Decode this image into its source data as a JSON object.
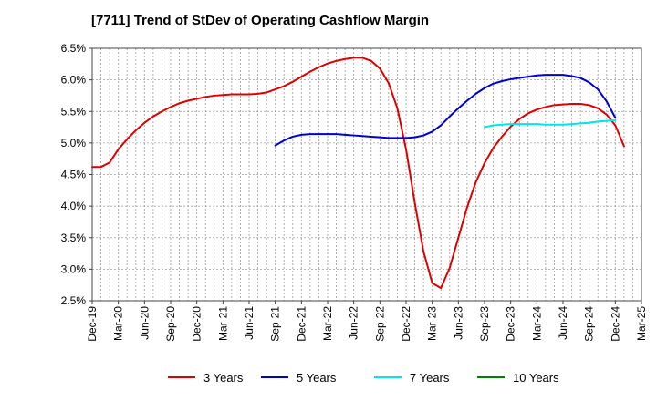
{
  "chart_data": {
    "type": "line",
    "title": "[7711]  Trend of StDev of Operating Cashflow Margin",
    "xlabel": "",
    "ylabel": "",
    "x_ticks": [
      "Dec-19",
      "Mar-20",
      "Jun-20",
      "Sep-20",
      "Dec-20",
      "Mar-21",
      "Jun-21",
      "Sep-21",
      "Dec-21",
      "Mar-22",
      "Jun-22",
      "Sep-22",
      "Dec-22",
      "Mar-23",
      "Jun-23",
      "Sep-23",
      "Dec-23",
      "Mar-24",
      "Jun-24",
      "Sep-24",
      "Dec-24",
      "Mar-25"
    ],
    "y_ticks": [
      "2.5%",
      "3.0%",
      "3.5%",
      "4.0%",
      "4.5%",
      "5.0%",
      "5.5%",
      "6.0%",
      "6.5%"
    ],
    "ylim": [
      2.5,
      6.5
    ],
    "xlim": [
      "Dec-19",
      "Mar-25"
    ],
    "grid": true,
    "legend_position": "bottom",
    "series": [
      {
        "name": "3 Years",
        "color": "#dd0000",
        "points": [
          [
            "Dec-19",
            4.62
          ],
          [
            "Jan-20",
            4.62
          ],
          [
            "Feb-20",
            4.69
          ],
          [
            "Mar-20",
            4.9
          ],
          [
            "Apr-20",
            5.06
          ],
          [
            "May-20",
            5.2
          ],
          [
            "Jun-20",
            5.32
          ],
          [
            "Jul-20",
            5.42
          ],
          [
            "Aug-20",
            5.5
          ],
          [
            "Sep-20",
            5.57
          ],
          [
            "Oct-20",
            5.63
          ],
          [
            "Nov-20",
            5.67
          ],
          [
            "Dec-20",
            5.7
          ],
          [
            "Jan-21",
            5.73
          ],
          [
            "Feb-21",
            5.75
          ],
          [
            "Mar-21",
            5.76
          ],
          [
            "Apr-21",
            5.77
          ],
          [
            "May-21",
            5.77
          ],
          [
            "Jun-21",
            5.77
          ],
          [
            "Jul-21",
            5.78
          ],
          [
            "Aug-21",
            5.8
          ],
          [
            "Sep-21",
            5.85
          ],
          [
            "Oct-21",
            5.9
          ],
          [
            "Nov-21",
            5.97
          ],
          [
            "Dec-21",
            6.05
          ],
          [
            "Jan-22",
            6.13
          ],
          [
            "Feb-22",
            6.2
          ],
          [
            "Mar-22",
            6.26
          ],
          [
            "Apr-22",
            6.3
          ],
          [
            "May-22",
            6.33
          ],
          [
            "Jun-22",
            6.35
          ],
          [
            "Jul-22",
            6.35
          ],
          [
            "Aug-22",
            6.3
          ],
          [
            "Sep-22",
            6.18
          ],
          [
            "Oct-22",
            5.95
          ],
          [
            "Nov-22",
            5.55
          ],
          [
            "Dec-22",
            4.9
          ],
          [
            "Jan-23",
            4.05
          ],
          [
            "Feb-23",
            3.28
          ],
          [
            "Mar-23",
            2.78
          ],
          [
            "Apr-23",
            2.7
          ],
          [
            "May-23",
            3.02
          ],
          [
            "Jun-23",
            3.5
          ],
          [
            "Jul-23",
            3.98
          ],
          [
            "Aug-23",
            4.38
          ],
          [
            "Sep-23",
            4.68
          ],
          [
            "Oct-23",
            4.92
          ],
          [
            "Nov-23",
            5.1
          ],
          [
            "Dec-23",
            5.26
          ],
          [
            "Jan-24",
            5.38
          ],
          [
            "Feb-24",
            5.47
          ],
          [
            "Mar-24",
            5.53
          ],
          [
            "Apr-24",
            5.57
          ],
          [
            "May-24",
            5.6
          ],
          [
            "Jun-24",
            5.61
          ],
          [
            "Jul-24",
            5.62
          ],
          [
            "Aug-24",
            5.62
          ],
          [
            "Sep-24",
            5.6
          ],
          [
            "Oct-24",
            5.55
          ],
          [
            "Nov-24",
            5.45
          ],
          [
            "Dec-24",
            5.28
          ],
          [
            "Jan-25",
            4.95
          ]
        ]
      },
      {
        "name": "5 Years",
        "color": "#0000cc",
        "points": [
          [
            "Sep-21",
            4.96
          ],
          [
            "Oct-21",
            5.04
          ],
          [
            "Nov-21",
            5.1
          ],
          [
            "Dec-21",
            5.13
          ],
          [
            "Jan-22",
            5.14
          ],
          [
            "Feb-22",
            5.14
          ],
          [
            "Mar-22",
            5.14
          ],
          [
            "Apr-22",
            5.14
          ],
          [
            "May-22",
            5.13
          ],
          [
            "Jun-22",
            5.12
          ],
          [
            "Jul-22",
            5.11
          ],
          [
            "Aug-22",
            5.1
          ],
          [
            "Sep-22",
            5.09
          ],
          [
            "Oct-22",
            5.08
          ],
          [
            "Nov-22",
            5.08
          ],
          [
            "Dec-22",
            5.08
          ],
          [
            "Jan-23",
            5.09
          ],
          [
            "Feb-23",
            5.12
          ],
          [
            "Mar-23",
            5.18
          ],
          [
            "Apr-23",
            5.28
          ],
          [
            "May-23",
            5.42
          ],
          [
            "Jun-23",
            5.55
          ],
          [
            "Jul-23",
            5.67
          ],
          [
            "Aug-23",
            5.78
          ],
          [
            "Sep-23",
            5.87
          ],
          [
            "Oct-23",
            5.94
          ],
          [
            "Nov-23",
            5.98
          ],
          [
            "Dec-23",
            6.01
          ],
          [
            "Jan-24",
            6.03
          ],
          [
            "Feb-24",
            6.05
          ],
          [
            "Mar-24",
            6.07
          ],
          [
            "Apr-24",
            6.08
          ],
          [
            "May-24",
            6.08
          ],
          [
            "Jun-24",
            6.08
          ],
          [
            "Jul-24",
            6.06
          ],
          [
            "Aug-24",
            6.03
          ],
          [
            "Sep-24",
            5.96
          ],
          [
            "Oct-24",
            5.85
          ],
          [
            "Nov-24",
            5.66
          ],
          [
            "Dec-24",
            5.4
          ]
        ]
      },
      {
        "name": "7 Years",
        "color": "#00e5e5",
        "points": [
          [
            "Sep-23",
            5.25
          ],
          [
            "Oct-23",
            5.28
          ],
          [
            "Nov-23",
            5.29
          ],
          [
            "Dec-23",
            5.3
          ],
          [
            "Jan-24",
            5.3
          ],
          [
            "Feb-24",
            5.3
          ],
          [
            "Mar-24",
            5.3
          ],
          [
            "Apr-24",
            5.29
          ],
          [
            "May-24",
            5.29
          ],
          [
            "Jun-24",
            5.29
          ],
          [
            "Jul-24",
            5.3
          ],
          [
            "Aug-24",
            5.31
          ],
          [
            "Sep-24",
            5.32
          ],
          [
            "Oct-24",
            5.34
          ],
          [
            "Nov-24",
            5.35
          ],
          [
            "Dec-24",
            5.36
          ]
        ]
      },
      {
        "name": "10 Years",
        "color": "#008000",
        "points": []
      }
    ]
  }
}
